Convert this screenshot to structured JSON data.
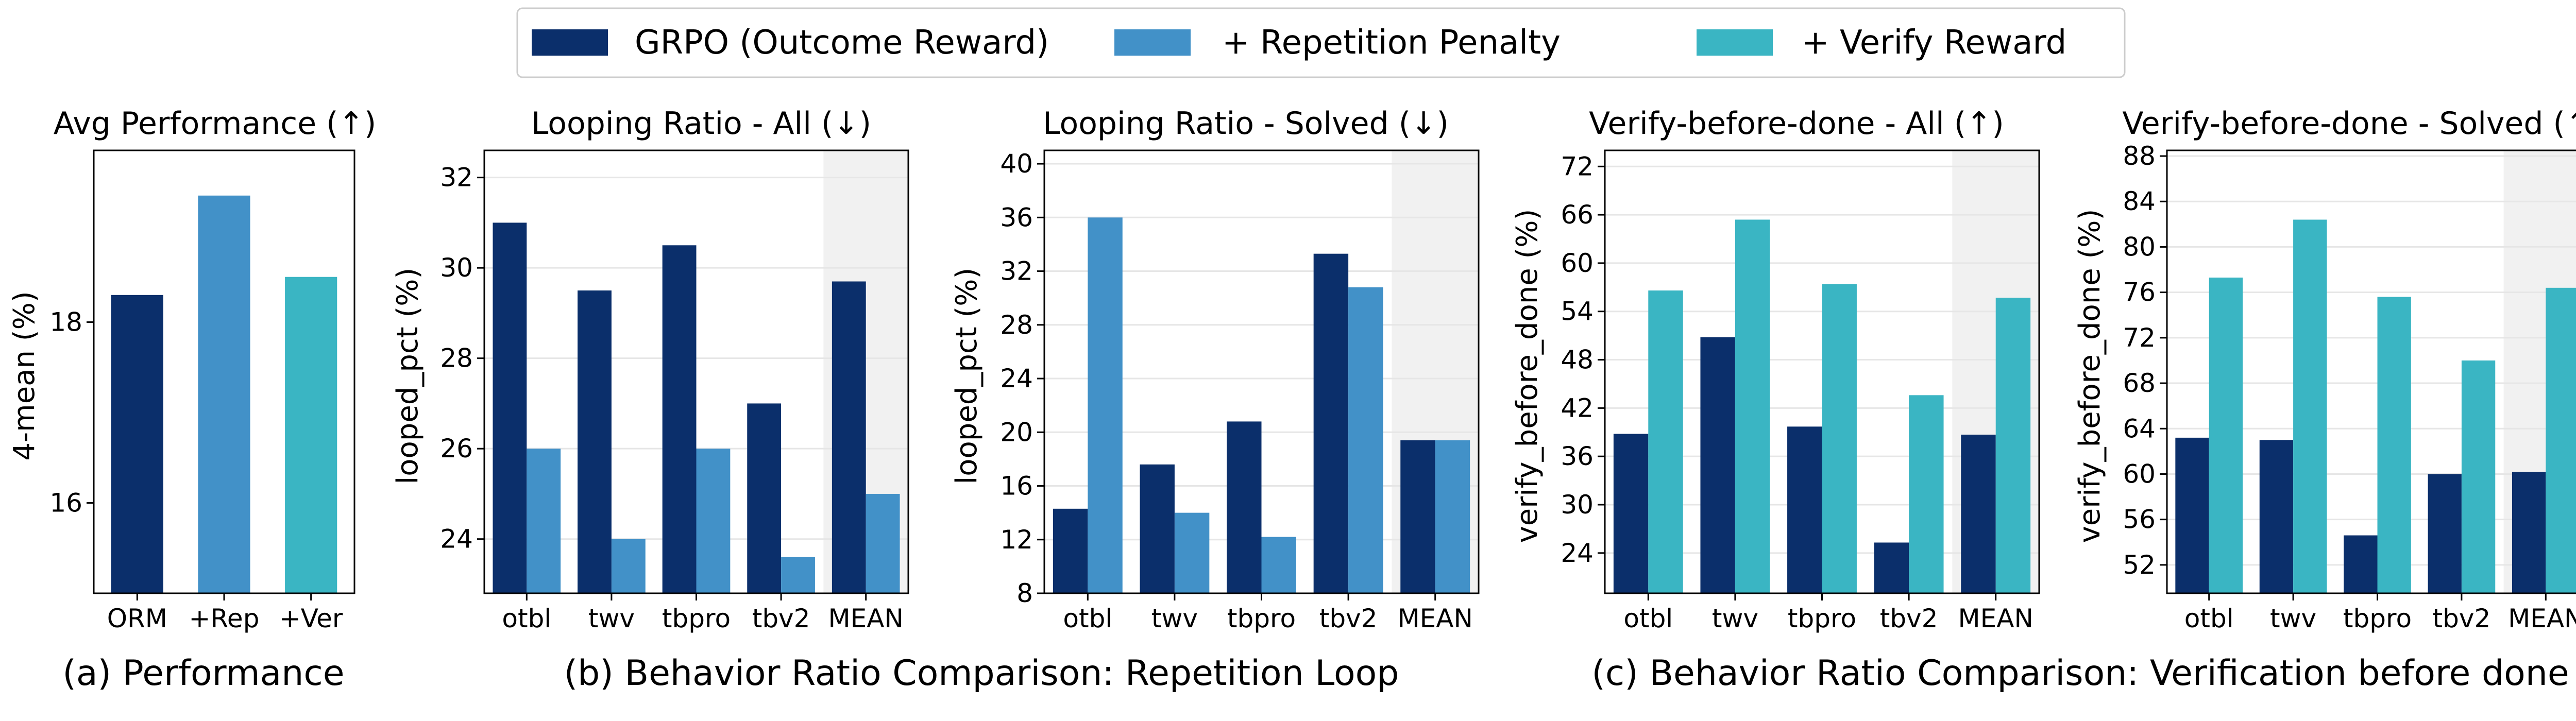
{
  "legend": {
    "entries": [
      {
        "label": "GRPO (Outcome Reward)",
        "color": "#0b2f6b"
      },
      {
        "label": "+ Repetition Penalty",
        "color": "#4291c8"
      },
      {
        "label": "+ Verify Reward",
        "color": "#3ab5c3"
      }
    ]
  },
  "captions": {
    "a": "(a) Performance",
    "b": "(b) Behavior Ratio Comparison: Repetition Loop",
    "c": "(c) Behavior Ratio Comparison: Verification before done"
  },
  "colors": {
    "grpo": "#0b2f6b",
    "rep": "#4291c8",
    "ver": "#3ab5c3",
    "mean_band": "#f1f1f1",
    "grid": "#e6e6e6"
  },
  "chart_data": [
    {
      "type": "bar",
      "title": "Avg Performance (↑)",
      "xlabel": "",
      "ylabel": "4-mean (%)",
      "categories": [
        "ORM",
        "+Rep",
        "+Ver"
      ],
      "values": [
        18.3,
        19.4,
        18.5
      ],
      "bar_colors": [
        "grpo",
        "rep",
        "ver"
      ],
      "ylim": [
        15.0,
        19.9
      ],
      "yticks": [
        16,
        18
      ],
      "grid": false
    },
    {
      "type": "bar",
      "title": "Looping Ratio - All (↓)",
      "xlabel": "",
      "ylabel": "looped_pct (%)",
      "categories": [
        "otbl",
        "twv",
        "tbpro",
        "tbv2",
        "MEAN"
      ],
      "series": [
        {
          "name": "GRPO (Outcome Reward)",
          "color": "grpo",
          "values": [
            31.0,
            29.5,
            30.5,
            27.0,
            29.7
          ]
        },
        {
          "name": "+ Repetition Penalty",
          "color": "rep",
          "values": [
            26.0,
            24.0,
            26.0,
            23.6,
            25.0
          ]
        }
      ],
      "ylim": [
        22.8,
        32.6
      ],
      "yticks": [
        24,
        26,
        28,
        30,
        32
      ],
      "grid": true,
      "highlight_category": "MEAN"
    },
    {
      "type": "bar",
      "title": "Looping Ratio - Solved (↓)",
      "xlabel": "",
      "ylabel": "looped_pct (%)",
      "categories": [
        "otbl",
        "twv",
        "tbpro",
        "tbv2",
        "MEAN"
      ],
      "series": [
        {
          "name": "GRPO (Outcome Reward)",
          "color": "grpo",
          "values": [
            14.3,
            17.6,
            20.8,
            33.3,
            19.4
          ]
        },
        {
          "name": "+ Repetition Penalty",
          "color": "rep",
          "values": [
            36.0,
            14.0,
            12.2,
            30.8,
            19.4
          ]
        }
      ],
      "ylim": [
        8,
        41
      ],
      "yticks": [
        8,
        12,
        16,
        20,
        24,
        28,
        32,
        36,
        40
      ],
      "grid": true,
      "highlight_category": "MEAN"
    },
    {
      "type": "bar",
      "title": "Verify-before-done - All (↑)",
      "xlabel": "",
      "ylabel": "verify_before_done (%)",
      "categories": [
        "otbl",
        "twv",
        "tbpro",
        "tbv2",
        "MEAN"
      ],
      "series": [
        {
          "name": "GRPO (Outcome Reward)",
          "color": "grpo",
          "values": [
            38.8,
            50.8,
            39.7,
            25.3,
            38.7
          ]
        },
        {
          "name": "+ Verify Reward",
          "color": "ver",
          "values": [
            56.6,
            65.4,
            57.4,
            43.6,
            55.7
          ]
        }
      ],
      "ylim": [
        19.0,
        74.0
      ],
      "yticks": [
        24,
        30,
        36,
        42,
        48,
        54,
        60,
        66,
        72
      ],
      "grid": true,
      "highlight_category": "MEAN"
    },
    {
      "type": "bar",
      "title": "Verify-before-done - Solved (↑)",
      "xlabel": "",
      "ylabel": "verify_before_done (%)",
      "categories": [
        "otbl",
        "twv",
        "tbpro",
        "tbv2",
        "MEAN"
      ],
      "series": [
        {
          "name": "GRPO (Outcome Reward)",
          "color": "grpo",
          "values": [
            63.2,
            63.0,
            54.6,
            60.0,
            60.2
          ]
        },
        {
          "name": "+ Verify Reward",
          "color": "ver",
          "values": [
            77.3,
            82.4,
            75.6,
            70.0,
            76.4
          ]
        }
      ],
      "ylim": [
        49.5,
        88.5
      ],
      "yticks": [
        52,
        56,
        60,
        64,
        68,
        72,
        76,
        80,
        84,
        88
      ],
      "grid": true,
      "highlight_category": "MEAN"
    }
  ]
}
